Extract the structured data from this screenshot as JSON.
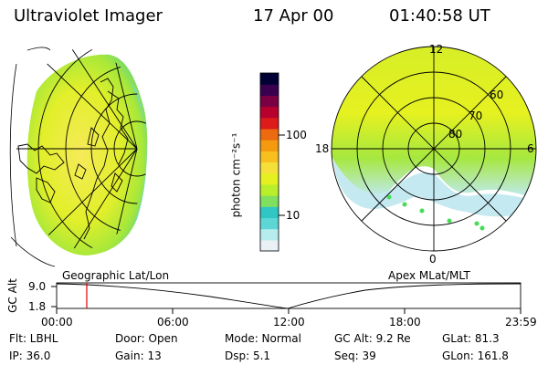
{
  "header": {
    "instrument": "Ultraviolet Imager",
    "date": "17 Apr 00",
    "time": "01:40:58 UT"
  },
  "colorbar": {
    "label": "photon cm⁻²s⁻¹",
    "ticks": [
      "100",
      "10"
    ],
    "colors": [
      "#e9f1f5",
      "#b6ecee",
      "#5fd6d6",
      "#2fc6c4",
      "#7fe060",
      "#b9ee2a",
      "#e5f020",
      "#f5e03a",
      "#f8c01e",
      "#f49a0e",
      "#ec6a10",
      "#dd1b1b",
      "#b8002e",
      "#7a0044",
      "#3a0050",
      "#000035"
    ]
  },
  "left_panel": {
    "name": "Geographic Lat/Lon"
  },
  "right_panel": {
    "name": "Apex MLat/MLT",
    "mlt_labels": [
      "12",
      "18",
      "6",
      "0"
    ],
    "lat_labels": [
      "60",
      "70",
      "80"
    ]
  },
  "timeline": {
    "ylabel": "GC Alt",
    "yticks": [
      "9.0",
      "1.8"
    ],
    "xticks": [
      "00:00",
      "06:00",
      "12:00",
      "18:00",
      "23:59"
    ],
    "marker_time": "01:40"
  },
  "info": {
    "flt": "Flt: LBHL",
    "ip": "IP: 36.0",
    "door": "Door: Open",
    "gain": "Gain: 13",
    "mode": "Mode: Normal",
    "dsp": "Dsp:    5.1",
    "gcalt": "GC Alt: 9.2 Re",
    "seq": "Seq: 39",
    "glat": "GLat:  81.3",
    "glon": "GLon: 161.8"
  }
}
